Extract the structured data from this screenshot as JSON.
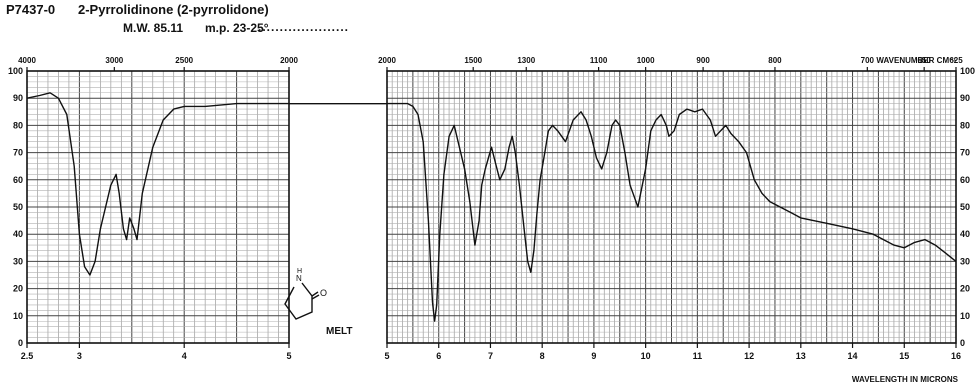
{
  "header": {
    "catalog": "P7437-0",
    "compound": "2-Pyrrolidinone (2-pyrrolidone)",
    "mw": "M.W. 85.11",
    "mp": "m.p. 23-25°",
    "dots": "....................."
  },
  "chart_data": {
    "type": "line",
    "title": "",
    "xlabel": "WAVELENGTH IN MICRONS",
    "x2label": "WAVENUMBER CM⁻¹",
    "ylabel": "",
    "sample_label": "MELT",
    "panels": [
      {
        "id": "left",
        "xlim": [
          2.5,
          5
        ],
        "ylim": [
          0,
          100
        ],
        "micron_ticks": [
          "2.5",
          "3",
          "4",
          "5"
        ],
        "micron_tick_values": [
          2.5,
          3,
          4,
          5
        ],
        "wavenumber_ticks": [
          "4000",
          "3000",
          "2500",
          "2000"
        ],
        "wavenumber_tick_values": [
          4000,
          3000,
          2500,
          2000
        ],
        "y_ticks": [
          "100",
          "90",
          "80",
          "70",
          "60",
          "50",
          "40",
          "30",
          "20",
          "10",
          "0"
        ],
        "y_tick_values": [
          100,
          90,
          80,
          70,
          60,
          50,
          40,
          30,
          20,
          10,
          0
        ],
        "y_ticks_side": "left"
      },
      {
        "id": "right",
        "xlim": [
          5,
          16
        ],
        "ylim": [
          0,
          100
        ],
        "micron_ticks": [
          "5",
          "6",
          "7",
          "8",
          "9",
          "10",
          "11",
          "12",
          "13",
          "14",
          "15",
          "16"
        ],
        "micron_tick_values": [
          5,
          6,
          7,
          8,
          9,
          10,
          11,
          12,
          13,
          14,
          15,
          16
        ],
        "wavenumber_ticks": [
          "2000",
          "1500",
          "1300",
          "1100",
          "1000",
          "900",
          "800",
          "700",
          "650",
          "625"
        ],
        "wavenumber_tick_values": [
          2000,
          1500,
          1300,
          1100,
          1000,
          900,
          800,
          700,
          650,
          625
        ],
        "y_ticks": [
          "100",
          "90",
          "80",
          "70",
          "60",
          "50",
          "40",
          "30",
          "20",
          "10",
          "0"
        ],
        "y_tick_values": [
          100,
          90,
          80,
          70,
          60,
          50,
          40,
          30,
          20,
          10,
          0
        ],
        "y_ticks_side": "right"
      }
    ],
    "series": [
      {
        "x": [
          2.5,
          2.62,
          2.72,
          2.8,
          2.88,
          2.95,
          3.0,
          3.05,
          3.1,
          3.15,
          3.2,
          3.25,
          3.3,
          3.35,
          3.38,
          3.42,
          3.45,
          3.48,
          3.52,
          3.55,
          3.6,
          3.7,
          3.8,
          3.9,
          4.0,
          4.2,
          4.5,
          4.8,
          5.0,
          5.1,
          5.2,
          5.3,
          5.4,
          5.5,
          5.6,
          5.7,
          5.8,
          5.88,
          5.92,
          5.96,
          6.02,
          6.1,
          6.2,
          6.3,
          6.4,
          6.5,
          6.6,
          6.7,
          6.78,
          6.83,
          6.9,
          6.96,
          7.02,
          7.1,
          7.18,
          7.28,
          7.36,
          7.42,
          7.48,
          7.56,
          7.65,
          7.72,
          7.78,
          7.84,
          7.9,
          7.96,
          8.05,
          8.12,
          8.2,
          8.3,
          8.45,
          8.6,
          8.75,
          8.85,
          8.95,
          9.05,
          9.15,
          9.25,
          9.35,
          9.42,
          9.5,
          9.6,
          9.7,
          9.85,
          10.0,
          10.1,
          10.2,
          10.3,
          10.4,
          10.45,
          10.55,
          10.65,
          10.8,
          10.95,
          11.1,
          11.25,
          11.35,
          11.45,
          11.55,
          11.65,
          11.8,
          11.95,
          12.1,
          12.25,
          12.4,
          12.6,
          12.8,
          13.0,
          13.5,
          14.0,
          14.4,
          14.8,
          15.0,
          15.2,
          15.4,
          15.6,
          15.8,
          16.0
        ],
        "y": [
          90,
          91,
          92,
          90,
          84,
          65,
          40,
          28,
          25,
          30,
          42,
          50,
          58,
          62,
          55,
          42,
          38,
          46,
          42,
          38,
          55,
          72,
          82,
          86,
          87,
          87,
          88,
          88,
          88,
          88,
          88,
          88,
          88,
          87,
          84,
          74,
          45,
          15,
          8,
          14,
          40,
          62,
          76,
          80,
          72,
          64,
          52,
          36,
          45,
          58,
          64,
          68,
          72,
          66,
          60,
          64,
          72,
          76,
          70,
          58,
          42,
          30,
          26,
          34,
          48,
          60,
          70,
          78,
          80,
          78,
          74,
          82,
          85,
          82,
          76,
          68,
          64,
          70,
          80,
          82,
          80,
          70,
          58,
          50,
          64,
          78,
          82,
          84,
          80,
          76,
          78,
          84,
          86,
          85,
          86,
          82,
          76,
          78,
          80,
          77,
          74,
          70,
          60,
          55,
          52,
          50,
          48,
          46,
          44,
          42,
          40,
          36,
          35,
          37,
          38,
          36,
          33,
          30
        ]
      }
    ],
    "grid": true,
    "legend": "none"
  }
}
